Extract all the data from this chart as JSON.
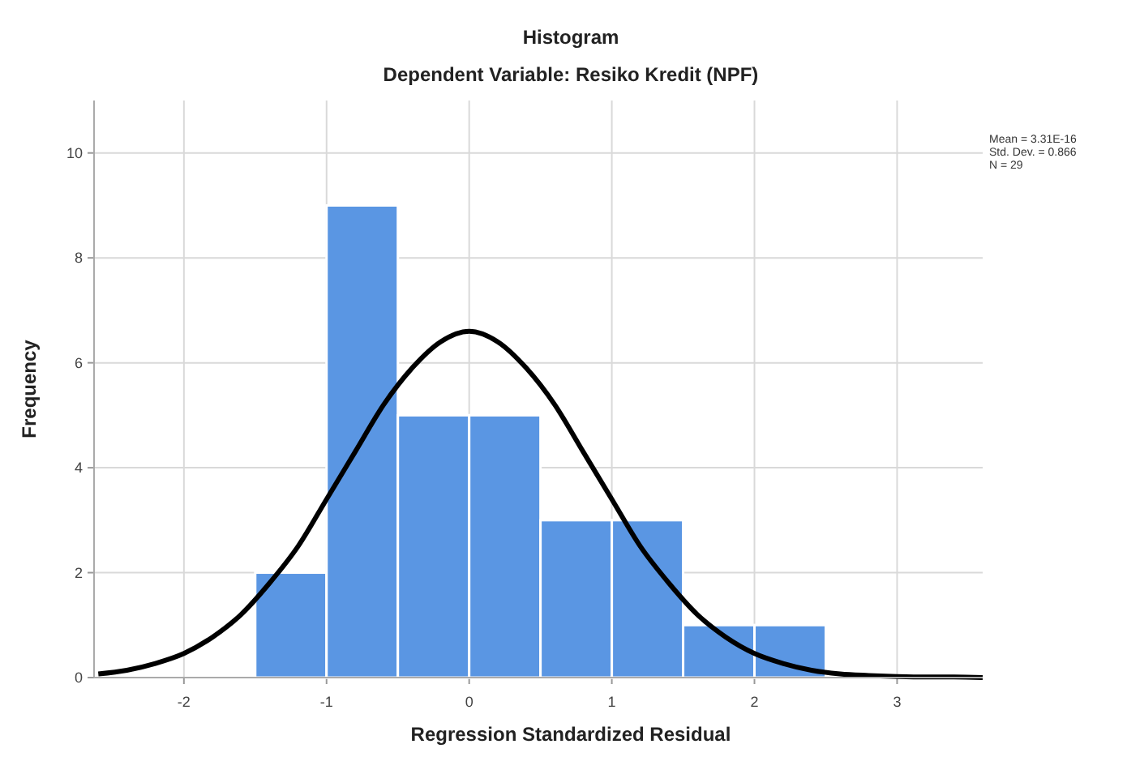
{
  "chart_data": {
    "type": "histogram",
    "title": "Histogram",
    "subtitle": "Dependent Variable: Resiko Kredit (NPF)",
    "xlabel": "Regression Standardized Residual",
    "ylabel": "Frequency",
    "bins": [
      -1.5,
      -1,
      -0.5,
      0,
      0.5,
      1,
      1.5,
      2,
      2.5
    ],
    "values": [
      2,
      9,
      5,
      5,
      3,
      3,
      1,
      1
    ],
    "color": "#5a96e3",
    "series": [
      {
        "type": "line",
        "color": "#000000",
        "x": [
          -2.6,
          -2.4,
          -2.2,
          -2,
          -1.8,
          -1.6,
          -1.4,
          -1.2,
          -1,
          -0.8,
          -0.6,
          -0.4,
          -0.2,
          0,
          0.2,
          0.4,
          0.6,
          0.8,
          1,
          1.2,
          1.4,
          1.6,
          1.8,
          2,
          2.2,
          2.4,
          2.6,
          2.8,
          3,
          3.2,
          3.4,
          3.6
        ],
        "values": [
          0.07,
          0.14,
          0.27,
          0.46,
          0.77,
          1.2,
          1.8,
          2.5,
          3.4,
          4.3,
          5.2,
          5.9,
          6.4,
          6.6,
          6.4,
          5.9,
          5.2,
          4.3,
          3.4,
          2.5,
          1.8,
          1.2,
          0.77,
          0.46,
          0.27,
          0.14,
          0.07,
          0.04,
          0.02,
          0.01,
          0.01,
          0
        ]
      }
    ],
    "xlim": [
      -2.63,
      3.6
    ],
    "xticks": [
      -2,
      -1,
      0,
      1,
      2,
      3
    ],
    "ylim": [
      0,
      11
    ],
    "yticks": [
      0,
      2,
      4,
      6,
      8,
      10
    ],
    "grid": true,
    "annotations": [
      "Mean = 3.31E-16",
      "Std. Dev. = 0.866",
      "N = 29"
    ]
  }
}
